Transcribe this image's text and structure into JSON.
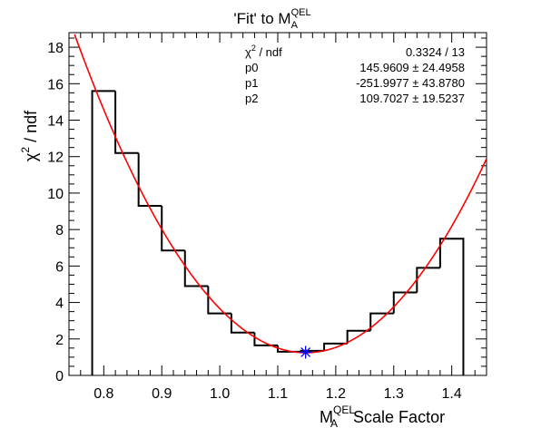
{
  "chart_data": {
    "type": "histogram",
    "title": {
      "main": "'Fit' to M",
      "sup": "QEL",
      "sub": "A"
    },
    "xlabel": {
      "main": "M",
      "sup": "QEL",
      "sub": "A",
      "rest": " Scale Factor"
    },
    "ylabel": {
      "chi": "χ",
      "sup": "2",
      "rest": " / ndf"
    },
    "xlim": [
      0.74,
      1.46
    ],
    "ylim": [
      0,
      18.8
    ],
    "xticks": [
      0.8,
      0.9,
      1.0,
      1.1,
      1.2,
      1.3,
      1.4
    ],
    "xtick_labels": [
      "0.8",
      "0.9",
      "1.0",
      "1.1",
      "1.2",
      "1.3",
      "1.4"
    ],
    "yticks": [
      0,
      2,
      4,
      6,
      8,
      10,
      12,
      14,
      16,
      18
    ],
    "ytick_labels": [
      "0",
      "2",
      "4",
      "6",
      "8",
      "10",
      "12",
      "14",
      "16",
      "18"
    ],
    "bin_edges": [
      0.78,
      0.82,
      0.86,
      0.9,
      0.94,
      0.98,
      1.02,
      1.06,
      1.1,
      1.14,
      1.18,
      1.22,
      1.26,
      1.3,
      1.34,
      1.38,
      1.42
    ],
    "bin_values": [
      15.6,
      12.2,
      9.3,
      6.85,
      4.9,
      3.4,
      2.35,
      1.65,
      1.3,
      1.35,
      1.75,
      2.45,
      3.4,
      4.55,
      5.9,
      7.5
    ],
    "fit_params": {
      "p0": 145.9609,
      "p1": -251.9977,
      "p2": 109.7027
    },
    "fit_color": "#ff0000",
    "hist_color": "#000000",
    "minimum_marker": {
      "x": 1.148,
      "y": 1.27,
      "color": "#0000ff"
    },
    "stats": {
      "rows": [
        {
          "name": "χ2 / ndf",
          "name_main": "χ",
          "name_sup": "2",
          "name_rest": " / ndf",
          "value": "0.3324 / 13"
        },
        {
          "name": "p0",
          "value": "145.9609 ± 24.4958"
        },
        {
          "name": "p1",
          "value": "-251.9977 ± 43.8780"
        },
        {
          "name": "p2",
          "value": "109.7027 ± 19.5237"
        }
      ]
    }
  }
}
